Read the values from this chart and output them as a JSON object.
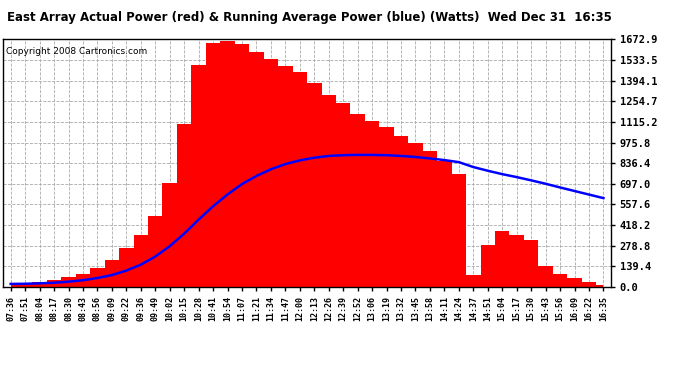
{
  "title": "East Array Actual Power (red) & Running Average Power (blue) (Watts)  Wed Dec 31  16:35",
  "copyright": "Copyright 2008 Cartronics.com",
  "bg_color": "#ffffff",
  "plot_bg_color": "#ffffff",
  "grid_color": "#aaaaaa",
  "actual_color": "red",
  "avg_color": "blue",
  "ymin": 0.0,
  "ymax": 1672.9,
  "yticks": [
    0.0,
    139.4,
    278.8,
    418.2,
    557.6,
    697.0,
    836.4,
    975.8,
    1115.2,
    1254.7,
    1394.1,
    1533.5,
    1672.9
  ],
  "xtick_labels": [
    "07:36",
    "07:51",
    "08:04",
    "08:17",
    "08:30",
    "08:43",
    "08:56",
    "09:09",
    "09:22",
    "09:36",
    "09:49",
    "10:02",
    "10:15",
    "10:28",
    "10:41",
    "10:54",
    "11:07",
    "11:21",
    "11:34",
    "11:47",
    "12:00",
    "12:13",
    "12:26",
    "12:39",
    "12:52",
    "13:06",
    "13:19",
    "13:32",
    "13:45",
    "13:58",
    "14:11",
    "14:24",
    "14:37",
    "14:51",
    "15:04",
    "15:17",
    "15:30",
    "15:43",
    "15:56",
    "16:09",
    "16:22",
    "16:35"
  ],
  "actual_values": [
    20,
    22,
    30,
    45,
    65,
    90,
    130,
    180,
    260,
    350,
    480,
    700,
    1100,
    1500,
    1650,
    1660,
    1640,
    1590,
    1540,
    1490,
    1450,
    1380,
    1300,
    1240,
    1170,
    1120,
    1080,
    1020,
    970,
    920,
    850,
    760,
    80,
    280,
    380,
    350,
    320,
    140,
    90,
    60,
    30,
    15
  ],
  "avg_values": [
    20,
    21,
    24,
    28,
    35,
    45,
    60,
    80,
    110,
    150,
    205,
    275,
    360,
    455,
    545,
    625,
    695,
    750,
    795,
    830,
    855,
    873,
    885,
    890,
    892,
    892,
    890,
    885,
    878,
    868,
    857,
    843,
    810,
    785,
    762,
    742,
    720,
    697,
    672,
    648,
    624,
    600
  ]
}
